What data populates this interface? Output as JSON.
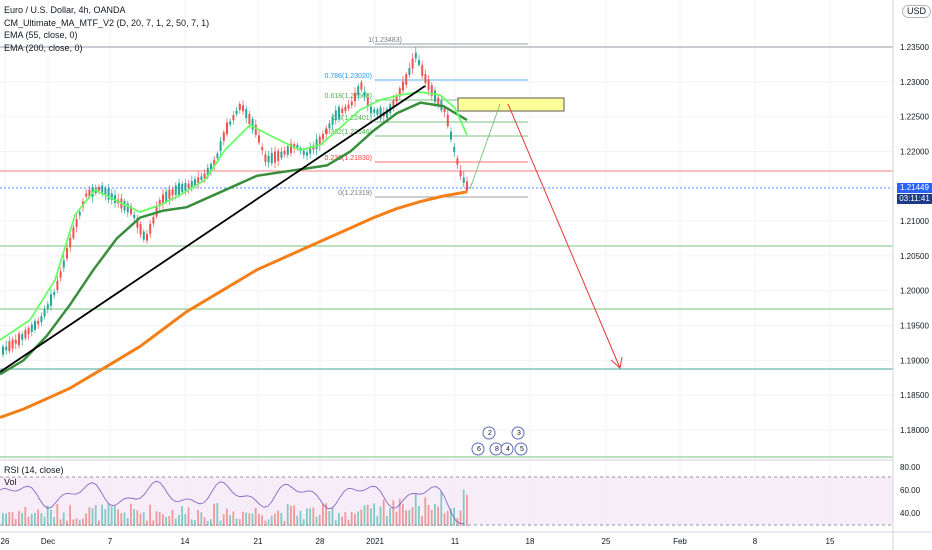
{
  "legend": {
    "symbol": "Euro / U.S. Dollar, 4h, OANDA",
    "indicator1": "CM_Ultimate_MA_MTF_V2 (D, 20, 7, 1, 2, 50, 7, 1)",
    "indicator2": "EMA (55, close, 0)",
    "indicator3": "EMA (200, close, 0)",
    "rsi": "RSI (14, close)",
    "vol": "Vol"
  },
  "currency": "USD",
  "current_price": "1.21449",
  "countdown": "03:11:41",
  "price_axis": [
    "1.23500",
    "1.23000",
    "1.22500",
    "1.22000",
    "1.21500",
    "1.21000",
    "1.20500",
    "1.20000",
    "1.19500",
    "1.19000",
    "1.18500",
    "1.18000"
  ],
  "rsi_axis": [
    "80.00",
    "60.00",
    "40.00"
  ],
  "time_axis": [
    "26",
    "Dec",
    "7",
    "14",
    "21",
    "28",
    "2021",
    "11",
    "18",
    "25",
    "Feb",
    "8",
    "15"
  ],
  "fib_labels": [
    "1(1.23483)",
    "0.786(1.23020)",
    "0.618(1.22668)",
    "0.5(1.22401)",
    "0.382(1.22146)",
    "0.236(1.21830)",
    "0(1.21319)"
  ],
  "event_badges": [
    "2",
    "3",
    "6",
    "8",
    "4",
    "5"
  ],
  "colors": {
    "up": "#26a69a",
    "down": "#ef5350",
    "ema55": "#388e3c",
    "ema200": "#f57f17",
    "arrow": "#e53935",
    "rsi": "#7e57c2",
    "accent": "#2962ff"
  },
  "chart_data": {
    "type": "line",
    "series": [
      {
        "name": "EMA (55, close, 0)",
        "values": [
          1.188,
          1.19,
          1.1935,
          1.198,
          1.203,
          1.2075,
          1.2105,
          1.2115,
          1.212,
          1.2135,
          1.215,
          1.2165,
          1.217,
          1.2175,
          1.218,
          1.22,
          1.223,
          1.2255,
          1.227,
          1.2265,
          1.2245
        ]
      },
      {
        "name": "EMA (200, close, 0)",
        "values": [
          1.1818,
          1.183,
          1.1845,
          1.186,
          1.188,
          1.19,
          1.192,
          1.1945,
          1.197,
          1.199,
          1.201,
          1.203,
          1.2045,
          1.206,
          1.2075,
          1.209,
          1.2105,
          1.2118,
          1.2128,
          1.2136,
          1.2142
        ]
      }
    ],
    "ylim": [
      1.175,
      1.2375
    ]
  }
}
